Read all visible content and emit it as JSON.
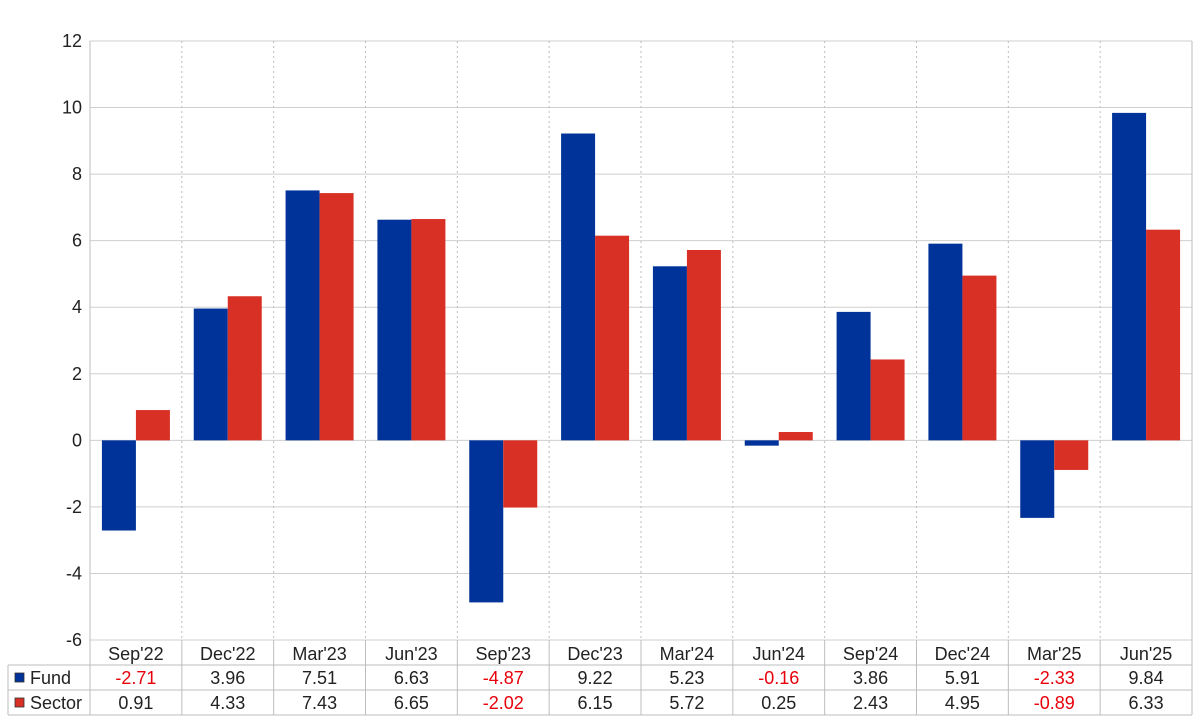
{
  "chart_data": {
    "type": "bar",
    "categories": [
      "Sep'22",
      "Dec'22",
      "Mar'23",
      "Jun'23",
      "Sep'23",
      "Dec'23",
      "Mar'24",
      "Jun'24",
      "Sep'24",
      "Dec'24",
      "Mar'25",
      "Jun'25"
    ],
    "series": [
      {
        "name": "Fund",
        "color": "#003399",
        "values": [
          -2.71,
          3.96,
          7.51,
          6.63,
          -4.87,
          9.22,
          5.23,
          -0.16,
          3.86,
          5.91,
          -2.33,
          9.84
        ],
        "labels": [
          "-2.71",
          "3.96",
          "7.51",
          "6.63",
          "-4.87",
          "9.22",
          "5.23",
          "-0.16",
          "3.86",
          "5.91",
          "-2.33",
          "9.84"
        ]
      },
      {
        "name": "Sector",
        "color": "#d93025",
        "values": [
          0.91,
          4.33,
          7.43,
          6.65,
          -2.02,
          6.15,
          5.72,
          0.25,
          2.43,
          4.95,
          -0.89,
          6.33
        ],
        "labels": [
          "0.91",
          "4.33",
          "7.43",
          "6.65",
          "-2.02",
          "6.15",
          "5.72",
          "0.25",
          "2.43",
          "4.95",
          "-0.89",
          "6.33"
        ]
      }
    ],
    "ylim": [
      -6,
      12
    ],
    "yticks": [
      "-6",
      "-4",
      "-2",
      "0",
      "2",
      "4",
      "6",
      "8",
      "10",
      "12"
    ],
    "grid": true,
    "legend": "data table below chart",
    "negative_value_color": "#e8000b",
    "title": "",
    "xlabel": "",
    "ylabel": ""
  }
}
